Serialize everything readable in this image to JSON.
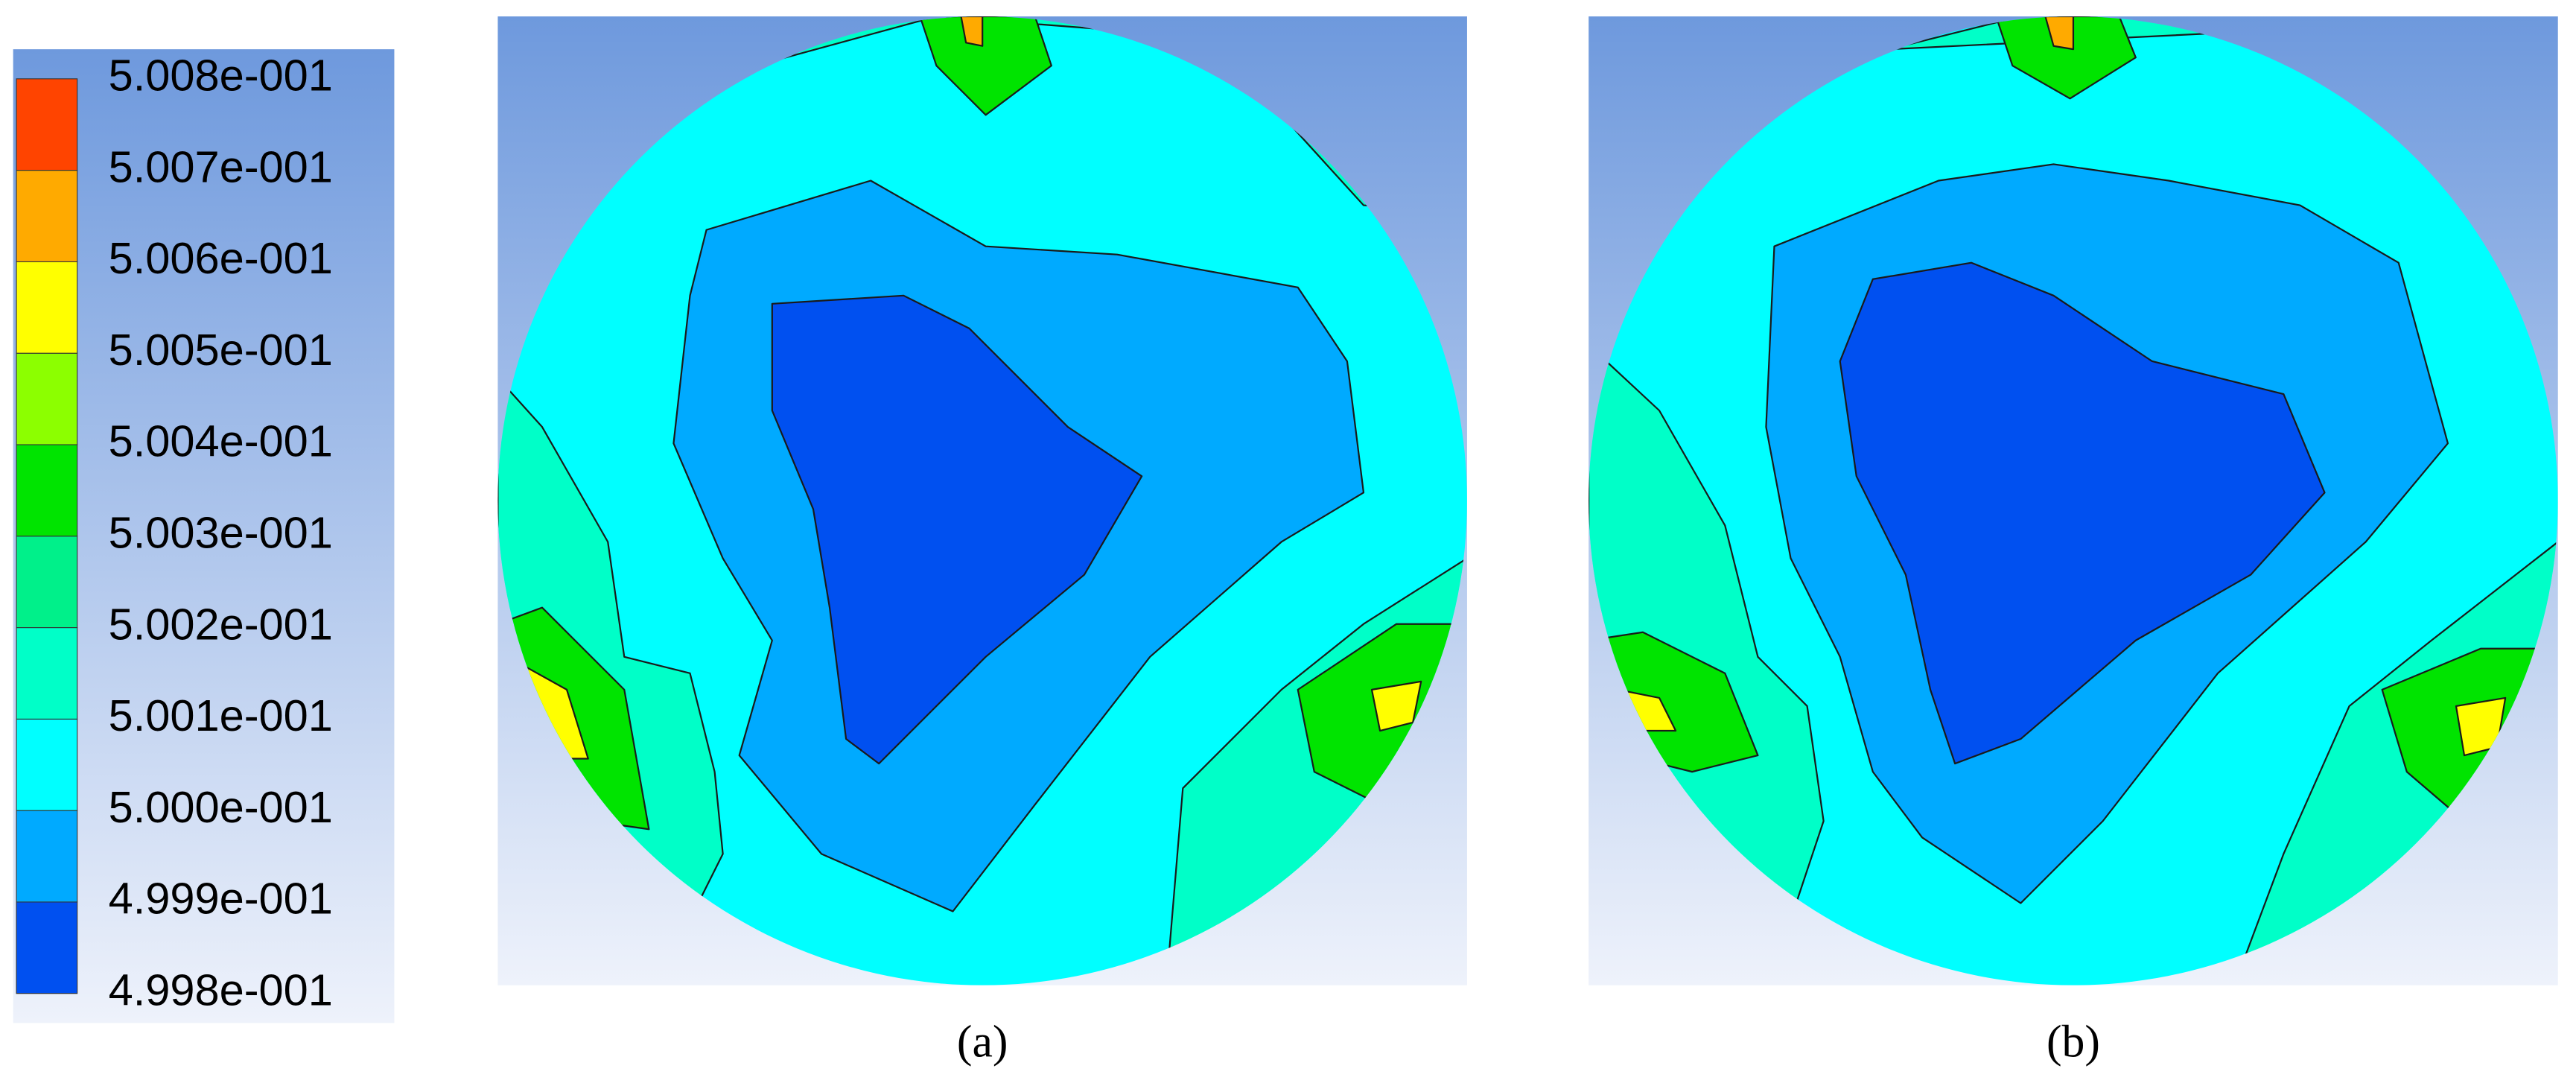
{
  "legend": {
    "labels": [
      "5.008e-001",
      "5.007e-001",
      "5.006e-001",
      "5.005e-001",
      "5.004e-001",
      "5.003e-001",
      "5.002e-001",
      "5.001e-001",
      "5.000e-001",
      "4.999e-001",
      "4.998e-001"
    ],
    "colors": [
      "#0050f0",
      "#00aaff",
      "#00ffff",
      "#00ffc8",
      "#00f08a",
      "#00e400",
      "#8cff00",
      "#ffff00",
      "#ffaa00",
      "#ff4400"
    ]
  },
  "panels": [
    {
      "caption": "(a)"
    },
    {
      "caption": "(b)"
    }
  ]
}
